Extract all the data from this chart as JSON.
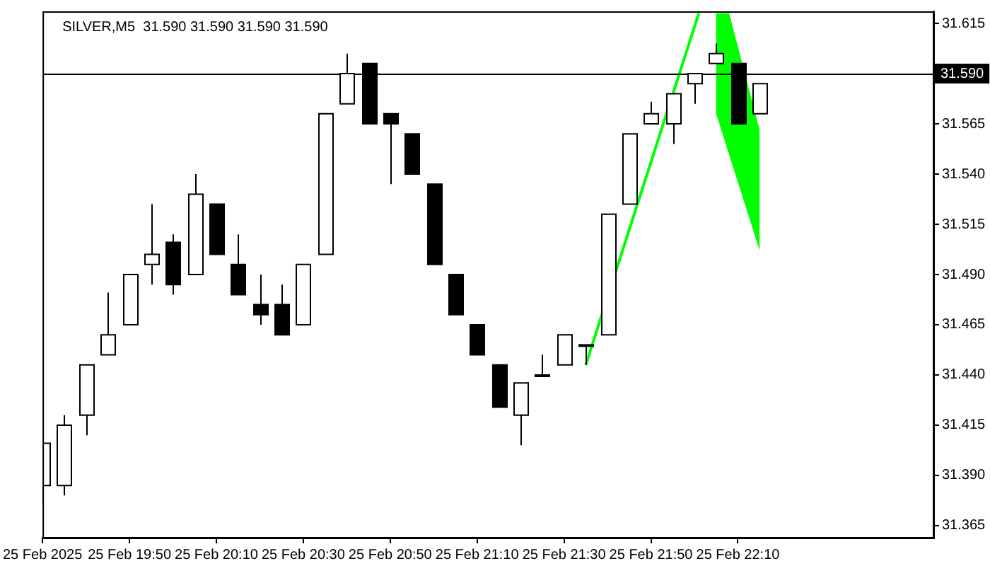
{
  "chart_data": {
    "type": "candlestick",
    "title": "SILVER,M5  31.590 31.590 31.590 31.590",
    "x": [
      "2025-02-25T19:30",
      "2025-02-25T19:35",
      "2025-02-25T19:40",
      "2025-02-25T19:45",
      "2025-02-25T19:50",
      "2025-02-25T19:55",
      "2025-02-25T20:00",
      "2025-02-25T20:05",
      "2025-02-25T20:10",
      "2025-02-25T20:15",
      "2025-02-25T20:20",
      "2025-02-25T20:25",
      "2025-02-25T20:30",
      "2025-02-25T20:35",
      "2025-02-25T20:40",
      "2025-02-25T20:45",
      "2025-02-25T20:50",
      "2025-02-25T20:55",
      "2025-02-25T21:00",
      "2025-02-25T21:05",
      "2025-02-25T21:10",
      "2025-02-25T21:15",
      "2025-02-25T21:20",
      "2025-02-25T21:25",
      "2025-02-25T21:30",
      "2025-02-25T21:35",
      "2025-02-25T21:40",
      "2025-02-25T21:45",
      "2025-02-25T21:50",
      "2025-02-25T21:55",
      "2025-02-25T22:00",
      "2025-02-25T22:05",
      "2025-02-25T22:10",
      "2025-02-25T22:15"
    ],
    "ohlc": [
      [
        31.385,
        31.406,
        31.375,
        31.406
      ],
      [
        31.385,
        31.42,
        31.38,
        31.415
      ],
      [
        31.42,
        31.445,
        31.41,
        31.445
      ],
      [
        31.45,
        31.481,
        31.45,
        31.46
      ],
      [
        31.465,
        31.49,
        31.465,
        31.49
      ],
      [
        31.495,
        31.525,
        31.485,
        31.5
      ],
      [
        31.506,
        31.51,
        31.48,
        31.485
      ],
      [
        31.49,
        31.54,
        31.49,
        31.53
      ],
      [
        31.525,
        31.525,
        31.5,
        31.5
      ],
      [
        31.495,
        31.51,
        31.48,
        31.48
      ],
      [
        31.475,
        31.49,
        31.465,
        31.47
      ],
      [
        31.475,
        31.485,
        31.46,
        31.46
      ],
      [
        31.465,
        31.495,
        31.465,
        31.495
      ],
      [
        31.5,
        31.57,
        31.5,
        31.57
      ],
      [
        31.575,
        31.6,
        31.575,
        31.59
      ],
      [
        31.595,
        31.595,
        31.565,
        31.565
      ],
      [
        31.57,
        31.57,
        31.535,
        31.565
      ],
      [
        31.56,
        31.56,
        31.54,
        31.54
      ],
      [
        31.535,
        31.535,
        31.495,
        31.495
      ],
      [
        31.49,
        31.49,
        31.47,
        31.47
      ],
      [
        31.465,
        31.465,
        31.45,
        31.45
      ],
      [
        31.445,
        31.445,
        31.424,
        31.424
      ],
      [
        31.42,
        31.436,
        31.405,
        31.436
      ],
      [
        31.44,
        31.45,
        31.44,
        31.44
      ],
      [
        31.445,
        31.46,
        31.445,
        31.46
      ],
      [
        31.455,
        31.455,
        31.445,
        31.455
      ],
      [
        31.46,
        31.52,
        31.46,
        31.52
      ],
      [
        31.525,
        31.56,
        31.525,
        31.56
      ],
      [
        31.565,
        31.576,
        31.565,
        31.57
      ],
      [
        31.565,
        31.58,
        31.555,
        31.58
      ],
      [
        31.585,
        31.59,
        31.575,
        31.59
      ],
      [
        31.595,
        31.605,
        31.595,
        31.6
      ],
      [
        31.595,
        31.595,
        31.565,
        31.565
      ],
      [
        31.57,
        31.585,
        31.57,
        31.585
      ]
    ],
    "series": [
      {
        "type": "line",
        "color": "#00ff00",
        "x": [
          "2025-02-25T21:35",
          "2025-02-25T22:01"
        ],
        "values": [
          31.445,
          31.62
        ]
      },
      {
        "type": "area",
        "color": "#00ff00",
        "x": [
          "2025-02-25T22:05",
          "2025-02-25T22:05",
          "2025-02-25T22:15",
          "2025-02-25T22:15",
          "2025-02-25T22:08"
        ],
        "values": [
          31.62,
          31.57,
          31.502,
          31.562,
          31.62
        ]
      }
    ],
    "xlim": [
      "2025-02-25T19:30",
      "2025-02-25T22:55"
    ],
    "xticks": [
      {
        "value": "2025-02-25T19:30",
        "label": "25 Feb 2025"
      },
      {
        "value": "2025-02-25T19:50",
        "label": "25 Feb 19:50"
      },
      {
        "value": "2025-02-25T20:10",
        "label": "25 Feb 20:10"
      },
      {
        "value": "2025-02-25T20:30",
        "label": "25 Feb 20:30"
      },
      {
        "value": "2025-02-25T20:50",
        "label": "25 Feb 20:50"
      },
      {
        "value": "2025-02-25T21:10",
        "label": "25 Feb 21:10"
      },
      {
        "value": "2025-02-25T21:30",
        "label": "25 Feb 21:30"
      },
      {
        "value": "2025-02-25T21:50",
        "label": "25 Feb 21:50"
      },
      {
        "value": "2025-02-25T22:10",
        "label": "25 Feb 22:10"
      }
    ],
    "ylim": [
      31.359,
      31.621
    ],
    "yticks": [
      {
        "value": 31.365,
        "label": "31.365"
      },
      {
        "value": 31.39,
        "label": "31.390"
      },
      {
        "value": 31.415,
        "label": "31.415"
      },
      {
        "value": 31.44,
        "label": "31.440"
      },
      {
        "value": 31.465,
        "label": "31.465"
      },
      {
        "value": 31.49,
        "label": "31.490"
      },
      {
        "value": 31.515,
        "label": "31.515"
      },
      {
        "value": 31.54,
        "label": "31.540"
      },
      {
        "value": 31.565,
        "label": "31.565"
      },
      {
        "value": 31.615,
        "label": "31.615"
      }
    ],
    "ref_lines": [
      {
        "axis": "y",
        "value": 31.59,
        "label": "31.590",
        "color": "#000000"
      }
    ]
  }
}
